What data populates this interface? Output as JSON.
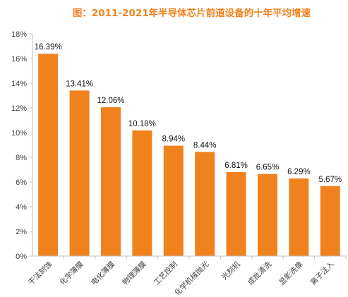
{
  "chart_data": {
    "type": "bar",
    "title": "图：2011-2021年半导体芯片前道设备的十年平均增速",
    "categories": [
      "干法刻蚀",
      "化学薄膜",
      "电化薄膜",
      "物理薄膜",
      "工艺控制",
      "化学机械抛光",
      "光刻机",
      "成批清洗",
      "显影洗像",
      "离子注入"
    ],
    "values": [
      16.39,
      13.41,
      12.06,
      10.18,
      8.94,
      8.44,
      6.81,
      6.65,
      6.29,
      5.67
    ],
    "data_labels": [
      "16.39%",
      "13.41%",
      "12.06%",
      "10.18%",
      "8.94%",
      "8.44%",
      "6.81%",
      "6.65%",
      "6.29%",
      "5.67%"
    ],
    "y_ticks": [
      0,
      2,
      4,
      6,
      8,
      10,
      12,
      14,
      16,
      18
    ],
    "y_tick_labels": [
      "0%",
      "2%",
      "4%",
      "6%",
      "8%",
      "10%",
      "12%",
      "14%",
      "16%",
      "18%"
    ],
    "ylim": [
      0,
      18
    ],
    "xlabel": "",
    "ylabel": "",
    "grid": false,
    "bar_color": "#f0821e",
    "title_color": "#f0821e"
  }
}
